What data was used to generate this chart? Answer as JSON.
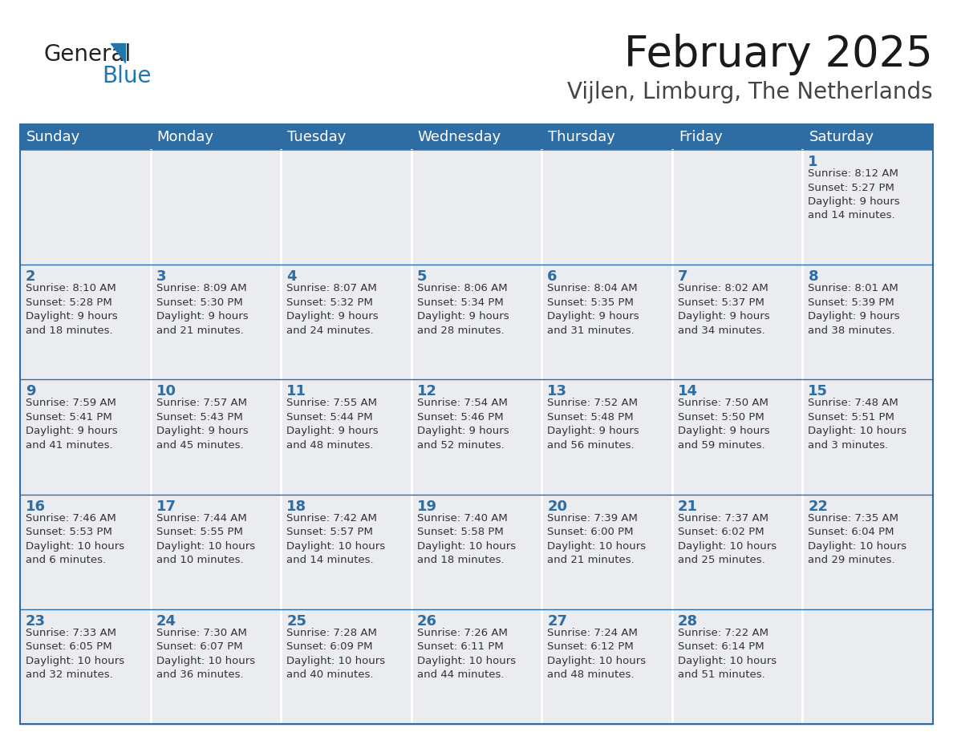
{
  "title": "February 2025",
  "subtitle": "Vijlen, Limburg, The Netherlands",
  "header_color": "#2E6DA4",
  "header_text_color": "#FFFFFF",
  "cell_bg_color": "#EAECF0",
  "text_color": "#333333",
  "day_num_color": "#2E6DA4",
  "separator_color": "#2E6DA4",
  "day_headers": [
    "Sunday",
    "Monday",
    "Tuesday",
    "Wednesday",
    "Thursday",
    "Friday",
    "Saturday"
  ],
  "weeks": [
    [
      {
        "day": "",
        "info": ""
      },
      {
        "day": "",
        "info": ""
      },
      {
        "day": "",
        "info": ""
      },
      {
        "day": "",
        "info": ""
      },
      {
        "day": "",
        "info": ""
      },
      {
        "day": "",
        "info": ""
      },
      {
        "day": "1",
        "info": "Sunrise: 8:12 AM\nSunset: 5:27 PM\nDaylight: 9 hours\nand 14 minutes."
      }
    ],
    [
      {
        "day": "2",
        "info": "Sunrise: 8:10 AM\nSunset: 5:28 PM\nDaylight: 9 hours\nand 18 minutes."
      },
      {
        "day": "3",
        "info": "Sunrise: 8:09 AM\nSunset: 5:30 PM\nDaylight: 9 hours\nand 21 minutes."
      },
      {
        "day": "4",
        "info": "Sunrise: 8:07 AM\nSunset: 5:32 PM\nDaylight: 9 hours\nand 24 minutes."
      },
      {
        "day": "5",
        "info": "Sunrise: 8:06 AM\nSunset: 5:34 PM\nDaylight: 9 hours\nand 28 minutes."
      },
      {
        "day": "6",
        "info": "Sunrise: 8:04 AM\nSunset: 5:35 PM\nDaylight: 9 hours\nand 31 minutes."
      },
      {
        "day": "7",
        "info": "Sunrise: 8:02 AM\nSunset: 5:37 PM\nDaylight: 9 hours\nand 34 minutes."
      },
      {
        "day": "8",
        "info": "Sunrise: 8:01 AM\nSunset: 5:39 PM\nDaylight: 9 hours\nand 38 minutes."
      }
    ],
    [
      {
        "day": "9",
        "info": "Sunrise: 7:59 AM\nSunset: 5:41 PM\nDaylight: 9 hours\nand 41 minutes."
      },
      {
        "day": "10",
        "info": "Sunrise: 7:57 AM\nSunset: 5:43 PM\nDaylight: 9 hours\nand 45 minutes."
      },
      {
        "day": "11",
        "info": "Sunrise: 7:55 AM\nSunset: 5:44 PM\nDaylight: 9 hours\nand 48 minutes."
      },
      {
        "day": "12",
        "info": "Sunrise: 7:54 AM\nSunset: 5:46 PM\nDaylight: 9 hours\nand 52 minutes."
      },
      {
        "day": "13",
        "info": "Sunrise: 7:52 AM\nSunset: 5:48 PM\nDaylight: 9 hours\nand 56 minutes."
      },
      {
        "day": "14",
        "info": "Sunrise: 7:50 AM\nSunset: 5:50 PM\nDaylight: 9 hours\nand 59 minutes."
      },
      {
        "day": "15",
        "info": "Sunrise: 7:48 AM\nSunset: 5:51 PM\nDaylight: 10 hours\nand 3 minutes."
      }
    ],
    [
      {
        "day": "16",
        "info": "Sunrise: 7:46 AM\nSunset: 5:53 PM\nDaylight: 10 hours\nand 6 minutes."
      },
      {
        "day": "17",
        "info": "Sunrise: 7:44 AM\nSunset: 5:55 PM\nDaylight: 10 hours\nand 10 minutes."
      },
      {
        "day": "18",
        "info": "Sunrise: 7:42 AM\nSunset: 5:57 PM\nDaylight: 10 hours\nand 14 minutes."
      },
      {
        "day": "19",
        "info": "Sunrise: 7:40 AM\nSunset: 5:58 PM\nDaylight: 10 hours\nand 18 minutes."
      },
      {
        "day": "20",
        "info": "Sunrise: 7:39 AM\nSunset: 6:00 PM\nDaylight: 10 hours\nand 21 minutes."
      },
      {
        "day": "21",
        "info": "Sunrise: 7:37 AM\nSunset: 6:02 PM\nDaylight: 10 hours\nand 25 minutes."
      },
      {
        "day": "22",
        "info": "Sunrise: 7:35 AM\nSunset: 6:04 PM\nDaylight: 10 hours\nand 29 minutes."
      }
    ],
    [
      {
        "day": "23",
        "info": "Sunrise: 7:33 AM\nSunset: 6:05 PM\nDaylight: 10 hours\nand 32 minutes."
      },
      {
        "day": "24",
        "info": "Sunrise: 7:30 AM\nSunset: 6:07 PM\nDaylight: 10 hours\nand 36 minutes."
      },
      {
        "day": "25",
        "info": "Sunrise: 7:28 AM\nSunset: 6:09 PM\nDaylight: 10 hours\nand 40 minutes."
      },
      {
        "day": "26",
        "info": "Sunrise: 7:26 AM\nSunset: 6:11 PM\nDaylight: 10 hours\nand 44 minutes."
      },
      {
        "day": "27",
        "info": "Sunrise: 7:24 AM\nSunset: 6:12 PM\nDaylight: 10 hours\nand 48 minutes."
      },
      {
        "day": "28",
        "info": "Sunrise: 7:22 AM\nSunset: 6:14 PM\nDaylight: 10 hours\nand 51 minutes."
      },
      {
        "day": "",
        "info": ""
      }
    ]
  ],
  "logo_general_color": "#222222",
  "logo_blue_color": "#2176AE",
  "title_fontsize": 38,
  "subtitle_fontsize": 20,
  "header_fontsize": 13,
  "day_num_fontsize": 13,
  "info_fontsize": 9.5
}
